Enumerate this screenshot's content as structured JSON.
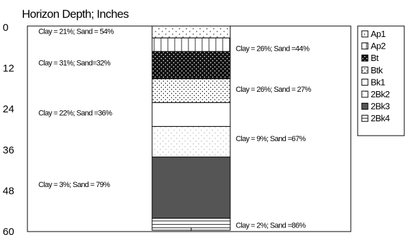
{
  "title": "Horizon Depth;  Inches",
  "axis": {
    "ticks": [
      {
        "value": 0,
        "label": "0"
      },
      {
        "value": 12,
        "label": "12"
      },
      {
        "value": 24,
        "label": "24"
      },
      {
        "value": 36,
        "label": "36"
      },
      {
        "value": 48,
        "label": "48"
      },
      {
        "value": 60,
        "label": "60"
      }
    ],
    "range": [
      0,
      60
    ]
  },
  "horizons": [
    {
      "name": "Ap1",
      "top": 0,
      "bottom": 3.5,
      "pattern": "sparse-dots"
    },
    {
      "name": "Ap2",
      "top": 3.5,
      "bottom": 7.5,
      "pattern": "vertical-lines"
    },
    {
      "name": "Bt",
      "top": 7.5,
      "bottom": 15.5,
      "pattern": "dense-dark"
    },
    {
      "name": "Btk",
      "top": 15.5,
      "bottom": 22.5,
      "pattern": "dots"
    },
    {
      "name": "Bk1",
      "top": 22.5,
      "bottom": 29.5,
      "pattern": "blank"
    },
    {
      "name": "2Bk2",
      "top": 29.5,
      "bottom": 38.5,
      "pattern": "fine-dots"
    },
    {
      "name": "2Bk3",
      "top": 38.5,
      "bottom": 56.5,
      "pattern": "solid-gray",
      "color": "#555555"
    },
    {
      "name": "2Bk4",
      "top": 56.5,
      "bottom": 60,
      "pattern": "horizontal-lines"
    }
  ],
  "annotations": [
    {
      "text": "Clay = 21%; Sand = 54%",
      "side": "left",
      "depth": 1.5
    },
    {
      "text": "Clay = 26%; Sand =44%",
      "side": "right",
      "depth": 6.5
    },
    {
      "text": "Clay =  31%; Sand=32%",
      "side": "left",
      "depth": 10.8
    },
    {
      "text": "Clay = 26%; Sand = 27%",
      "side": "right",
      "depth": 18.5
    },
    {
      "text": "Clay = 22%; Sand =36%",
      "side": "left",
      "depth": 25.5
    },
    {
      "text": "Clay = 9%; Sand =67%",
      "side": "right",
      "depth": 33.0
    },
    {
      "text": "Clay = 3%; Sand = 79%",
      "side": "left",
      "depth": 46.5
    },
    {
      "text": "Clay = 2%; Sand =86%",
      "side": "right",
      "depth": 58.5
    }
  ],
  "legend_title": ""
}
